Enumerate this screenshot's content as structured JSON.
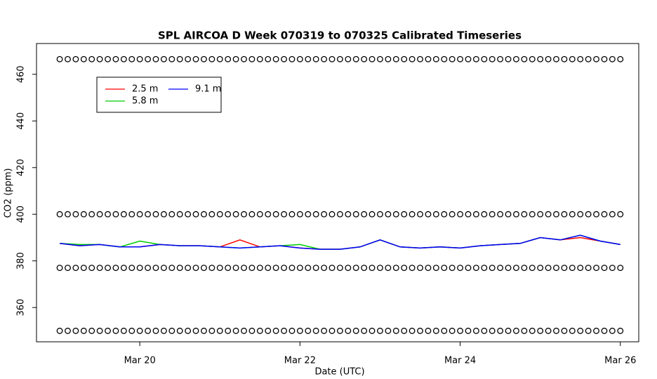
{
  "chart_data": {
    "type": "line",
    "title": "SPL AIRCOA D  Week 070319 to 070325  Calibrated Timeseries",
    "x_label": "Date (UTC)",
    "y_label": "CO2 (ppm)",
    "x": [
      19.0,
      19.25,
      19.5,
      19.75,
      20.0,
      20.25,
      20.5,
      20.75,
      21.0,
      21.25,
      21.5,
      21.75,
      22.0,
      22.25,
      22.5,
      22.75,
      23.0,
      23.25,
      23.5,
      23.75,
      24.0,
      24.25,
      24.5,
      24.75,
      25.0,
      25.25,
      25.5,
      25.75,
      26.0
    ],
    "series": [
      {
        "name": "2.5 m",
        "color": "#ff0000",
        "values": [
          387.5,
          386.5,
          387,
          386,
          386,
          387,
          386.5,
          386.5,
          386,
          389,
          386,
          386.5,
          385.5,
          385,
          385,
          386,
          389,
          386,
          385.5,
          386,
          385.5,
          386.5,
          387,
          387.5,
          390,
          389,
          390,
          388.5,
          387
        ]
      },
      {
        "name": "5.8 m",
        "color": "#00cc00",
        "values": [
          387.5,
          387,
          387,
          386,
          388.5,
          387,
          386.5,
          386.5,
          386,
          385.5,
          386,
          386.5,
          387,
          385,
          385,
          386,
          389,
          386,
          385.5,
          386,
          385.5,
          386.5,
          387,
          387.5,
          390,
          389,
          391,
          388.5,
          387
        ]
      },
      {
        "name": "9.1 m",
        "color": "#0000ff",
        "values": [
          387.5,
          386.5,
          387,
          386,
          386,
          387,
          386.5,
          386.5,
          386,
          385.5,
          386,
          386.5,
          385.5,
          385,
          385,
          386,
          389,
          386,
          385.5,
          386,
          385.5,
          386.5,
          387,
          387.5,
          390,
          389,
          391,
          388.5,
          387
        ]
      }
    ],
    "markers": {
      "levels": [
        350,
        377,
        400,
        466.5
      ],
      "x": [
        19.0,
        19.1,
        19.2,
        19.3,
        19.4,
        19.5,
        19.6,
        19.7,
        19.8,
        19.9,
        20.0,
        20.1,
        20.2,
        20.3,
        20.4,
        20.5,
        20.6,
        20.7,
        20.8,
        20.9,
        21.0,
        21.1,
        21.2,
        21.3,
        21.4,
        21.5,
        21.6,
        21.7,
        21.8,
        21.9,
        22.0,
        22.1,
        22.2,
        22.3,
        22.4,
        22.5,
        22.6,
        22.7,
        22.8,
        22.9,
        23.0,
        23.1,
        23.2,
        23.3,
        23.4,
        23.5,
        23.6,
        23.7,
        23.8,
        23.9,
        24.0,
        24.1,
        24.2,
        24.3,
        24.4,
        24.5,
        24.6,
        24.7,
        24.8,
        24.9,
        25.0,
        25.1,
        25.2,
        25.3,
        25.4,
        25.5,
        25.6,
        25.7,
        25.8,
        25.9,
        26.0
      ]
    },
    "xlim": [
      18.71,
      26.23
    ],
    "ylim": [
      345.3,
      473.2
    ],
    "xticks": [
      {
        "value": 20,
        "label": "Mar 20"
      },
      {
        "value": 22,
        "label": "Mar 22"
      },
      {
        "value": 24,
        "label": "Mar 24"
      },
      {
        "value": 26,
        "label": "Mar 26"
      }
    ],
    "yticks": [
      360,
      380,
      400,
      420,
      440,
      460
    ]
  }
}
